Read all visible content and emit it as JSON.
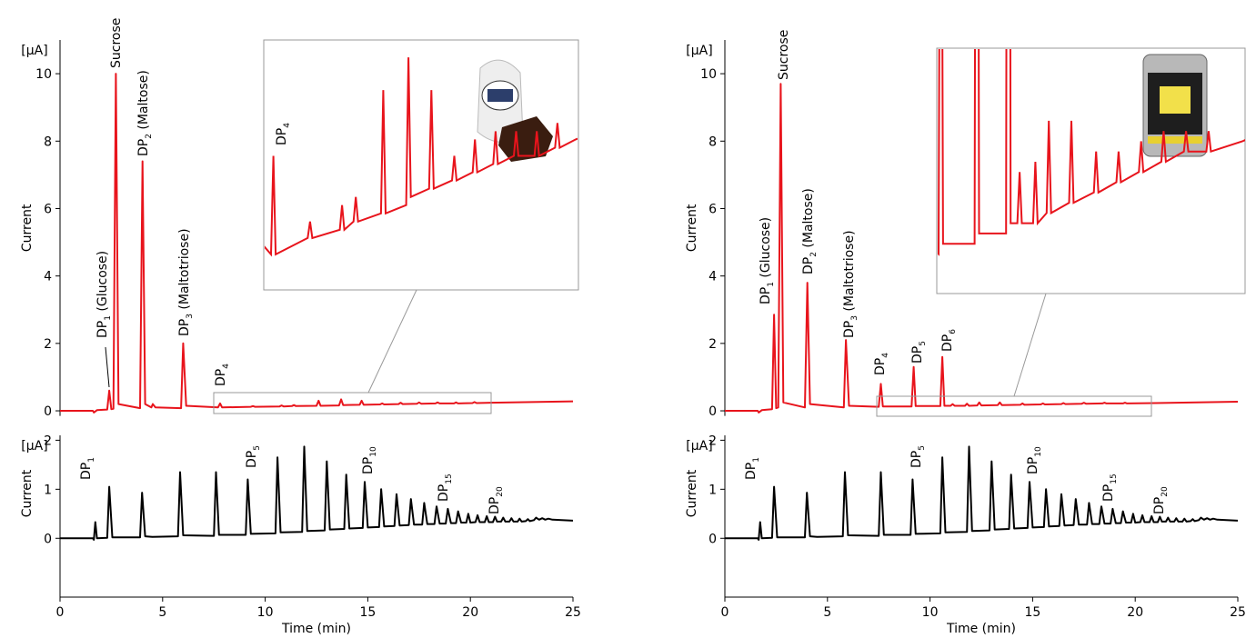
{
  "chart_data": [
    {
      "type": "line",
      "ylabel": "Current",
      "y_unit": "[μA]",
      "xlim": [
        0,
        25
      ],
      "ylim": [
        -0.15,
        11
      ],
      "yticks": [
        0,
        2,
        4,
        6,
        8,
        10
      ],
      "x": [
        0,
        1.6,
        1.65,
        1.8,
        2.3,
        2.4,
        2.5,
        2.6,
        2.72,
        2.85,
        3.9,
        4.02,
        4.15,
        4.45,
        4.52,
        4.65,
        5.9,
        6.0,
        6.15,
        7.7,
        7.8,
        7.9,
        9.3,
        9.4,
        9.5,
        10.7,
        10.8,
        10.9,
        11.3,
        11.4,
        11.5,
        12.5,
        12.6,
        12.7,
        13.6,
        13.7,
        13.8,
        14.6,
        14.7,
        14.8,
        15.6,
        15.7,
        15.8,
        16.5,
        16.6,
        16.7,
        17.4,
        17.5,
        17.6,
        18.3,
        18.4,
        18.5,
        19.2,
        19.3,
        19.4,
        20.1,
        20.2,
        20.3,
        21,
        23,
        25
      ],
      "series": [
        {
          "color": "#e8141c",
          "values": [
            0,
            0,
            -0.05,
            0.02,
            0.04,
            0.6,
            0.05,
            0.06,
            10.0,
            0.2,
            0.08,
            7.4,
            0.2,
            0.1,
            0.2,
            0.1,
            0.08,
            2.0,
            0.15,
            0.1,
            0.22,
            0.1,
            0.12,
            0.14,
            0.12,
            0.13,
            0.16,
            0.13,
            0.14,
            0.17,
            0.14,
            0.15,
            0.3,
            0.15,
            0.16,
            0.34,
            0.17,
            0.18,
            0.3,
            0.18,
            0.19,
            0.22,
            0.19,
            0.2,
            0.24,
            0.2,
            0.21,
            0.25,
            0.21,
            0.22,
            0.25,
            0.22,
            0.22,
            0.25,
            0.22,
            0.23,
            0.26,
            0.23,
            0.24,
            0.26,
            0.28
          ]
        }
      ],
      "inset": {
        "xlim": [
          7.5,
          21
        ],
        "ylim": [
          0.08,
          0.36
        ],
        "annotations": [
          {
            "text": "DP",
            "sub": "4"
          }
        ]
      },
      "annotations": [
        {
          "text": "Sucrose"
        },
        {
          "text": "DP",
          "sub": "1",
          "suffix": " (Glucose)"
        },
        {
          "text": "DP",
          "sub": "2",
          "suffix": " (Maltose)"
        },
        {
          "text": "DP",
          "sub": "3",
          "suffix": " (Maltotriose)"
        },
        {
          "text": "DP",
          "sub": "4"
        }
      ]
    },
    {
      "type": "line",
      "ylabel": "Current",
      "y_unit": "[μA]",
      "xlabel": "Time (min)",
      "xlim": [
        0,
        25
      ],
      "ylim": [
        -1.2,
        2.1
      ],
      "yticks": [
        0,
        1,
        2
      ],
      "xticks": [
        0,
        5,
        10,
        15,
        20,
        25
      ],
      "x": [
        0,
        1.6,
        1.65,
        1.72,
        1.8,
        2.3,
        2.4,
        2.55,
        3.9,
        4.0,
        4.15,
        4.5,
        5.75,
        5.85,
        6.0,
        7.5,
        7.6,
        7.75,
        9.05,
        9.15,
        9.3,
        10.5,
        10.6,
        10.75,
        11.8,
        11.9,
        12.05,
        12.9,
        13.0,
        13.15,
        13.85,
        13.95,
        14.1,
        14.75,
        14.85,
        15.0,
        15.55,
        15.65,
        15.8,
        16.3,
        16.4,
        16.55,
        17.0,
        17.1,
        17.25,
        17.65,
        17.75,
        17.9,
        18.25,
        18.35,
        18.5,
        18.8,
        18.9,
        19.05,
        19.3,
        19.4,
        19.55,
        19.8,
        19.9,
        20.0,
        20.25,
        20.35,
        20.45,
        20.7,
        20.8,
        20.9,
        21.1,
        21.2,
        21.3,
        21.5,
        21.6,
        21.7,
        21.9,
        22.0,
        22.1,
        22.3,
        22.4,
        22.5,
        22.7,
        22.8,
        22.9,
        23.1,
        23.2,
        23.35,
        23.5,
        23.65,
        23.8,
        24.0,
        25
      ],
      "series": [
        {
          "color": "#000000",
          "values": [
            0,
            0,
            -0.03,
            0.33,
            0.0,
            0.01,
            1.05,
            0.02,
            0.02,
            0.93,
            0.04,
            0.03,
            0.04,
            1.35,
            0.06,
            0.05,
            1.35,
            0.07,
            0.07,
            1.2,
            0.09,
            0.1,
            1.65,
            0.12,
            0.13,
            1.87,
            0.15,
            0.16,
            1.57,
            0.18,
            0.19,
            1.3,
            0.2,
            0.21,
            1.15,
            0.22,
            0.23,
            1.0,
            0.24,
            0.25,
            0.9,
            0.26,
            0.27,
            0.8,
            0.28,
            0.28,
            0.72,
            0.29,
            0.29,
            0.65,
            0.3,
            0.3,
            0.6,
            0.31,
            0.31,
            0.55,
            0.32,
            0.32,
            0.5,
            0.32,
            0.33,
            0.47,
            0.33,
            0.33,
            0.45,
            0.33,
            0.33,
            0.44,
            0.34,
            0.34,
            0.42,
            0.34,
            0.34,
            0.41,
            0.34,
            0.34,
            0.4,
            0.34,
            0.35,
            0.39,
            0.35,
            0.37,
            0.42,
            0.38,
            0.41,
            0.38,
            0.4,
            0.38,
            0.36
          ]
        }
      ],
      "annotations": [
        {
          "text": "DP",
          "sub": "1"
        },
        {
          "text": "DP",
          "sub": "5"
        },
        {
          "text": "DP",
          "sub": "10"
        },
        {
          "text": "DP",
          "sub": "15"
        },
        {
          "text": "DP",
          "sub": "20"
        }
      ]
    },
    {
      "type": "line",
      "ylabel": "Current",
      "y_unit": "[μA]",
      "xlim": [
        0,
        25
      ],
      "ylim": [
        -0.15,
        11
      ],
      "yticks": [
        0,
        2,
        4,
        6,
        8,
        10
      ],
      "x": [
        0,
        1.6,
        1.65,
        1.8,
        2.3,
        2.4,
        2.5,
        2.6,
        2.72,
        2.85,
        3.9,
        4.02,
        4.15,
        5.8,
        5.9,
        6.05,
        7.5,
        7.6,
        7.7,
        9.1,
        9.2,
        9.3,
        10.5,
        10.6,
        10.7,
        11.0,
        11.1,
        11.2,
        11.7,
        11.8,
        11.9,
        12.3,
        12.4,
        12.5,
        13.3,
        13.4,
        13.5,
        14.4,
        14.5,
        14.6,
        15.4,
        15.5,
        15.6,
        16.4,
        16.5,
        16.6,
        17.4,
        17.5,
        17.6,
        18.4,
        18.5,
        18.6,
        19.4,
        19.5,
        19.6,
        21,
        23,
        25
      ],
      "series": [
        {
          "color": "#e8141c",
          "values": [
            0,
            0,
            -0.05,
            0.02,
            0.05,
            2.85,
            0.08,
            0.1,
            9.7,
            0.25,
            0.1,
            3.8,
            0.2,
            0.1,
            2.1,
            0.15,
            0.12,
            0.8,
            0.13,
            0.13,
            1.3,
            0.14,
            0.14,
            1.6,
            0.15,
            0.15,
            0.2,
            0.15,
            0.15,
            0.21,
            0.15,
            0.16,
            0.25,
            0.16,
            0.17,
            0.25,
            0.17,
            0.18,
            0.22,
            0.18,
            0.19,
            0.22,
            0.19,
            0.2,
            0.23,
            0.2,
            0.21,
            0.24,
            0.21,
            0.22,
            0.24,
            0.22,
            0.22,
            0.24,
            0.22,
            0.23,
            0.25,
            0.27
          ]
        }
      ],
      "inset": {
        "xlim": [
          7.5,
          21
        ],
        "ylim": [
          0.1,
          0.32
        ]
      },
      "annotations": [
        {
          "text": "Sucrose"
        },
        {
          "text": "DP",
          "sub": "1",
          "suffix": " (Glucose)"
        },
        {
          "text": "DP",
          "sub": "2",
          "suffix": " (Maltose)"
        },
        {
          "text": "DP",
          "sub": "3",
          "suffix": " (Maltotriose)"
        },
        {
          "text": "DP",
          "sub": "4"
        },
        {
          "text": "DP",
          "sub": "5"
        },
        {
          "text": "DP",
          "sub": "6"
        }
      ]
    },
    {
      "type": "line",
      "ylabel": "Current",
      "y_unit": "[μA]",
      "xlabel": "Time (min)",
      "xlim": [
        0,
        25
      ],
      "ylim": [
        -1.2,
        2.1
      ],
      "yticks": [
        0,
        1,
        2
      ],
      "xticks": [
        0,
        5,
        10,
        15,
        20,
        25
      ],
      "x": [
        0,
        1.6,
        1.65,
        1.72,
        1.8,
        2.3,
        2.4,
        2.55,
        3.9,
        4.0,
        4.15,
        4.5,
        5.75,
        5.85,
        6.0,
        7.5,
        7.6,
        7.75,
        9.05,
        9.15,
        9.3,
        10.5,
        10.6,
        10.75,
        11.8,
        11.9,
        12.05,
        12.9,
        13.0,
        13.15,
        13.85,
        13.95,
        14.1,
        14.75,
        14.85,
        15.0,
        15.55,
        15.65,
        15.8,
        16.3,
        16.4,
        16.55,
        17.0,
        17.1,
        17.25,
        17.65,
        17.75,
        17.9,
        18.25,
        18.35,
        18.5,
        18.8,
        18.9,
        19.05,
        19.3,
        19.4,
        19.55,
        19.8,
        19.9,
        20.0,
        20.25,
        20.35,
        20.45,
        20.7,
        20.8,
        20.9,
        21.1,
        21.2,
        21.3,
        21.5,
        21.6,
        21.7,
        21.9,
        22.0,
        22.1,
        22.3,
        22.4,
        22.5,
        22.7,
        22.8,
        22.9,
        23.1,
        23.2,
        23.35,
        23.5,
        23.65,
        23.8,
        24.0,
        25
      ],
      "series": [
        {
          "color": "#000000",
          "values": [
            0,
            0,
            -0.03,
            0.33,
            0.0,
            0.01,
            1.05,
            0.02,
            0.02,
            0.93,
            0.04,
            0.03,
            0.04,
            1.35,
            0.06,
            0.05,
            1.35,
            0.07,
            0.07,
            1.2,
            0.09,
            0.1,
            1.65,
            0.12,
            0.13,
            1.87,
            0.15,
            0.16,
            1.57,
            0.18,
            0.19,
            1.3,
            0.2,
            0.21,
            1.15,
            0.22,
            0.23,
            1.0,
            0.24,
            0.25,
            0.9,
            0.26,
            0.27,
            0.8,
            0.28,
            0.28,
            0.72,
            0.29,
            0.29,
            0.65,
            0.3,
            0.3,
            0.6,
            0.31,
            0.31,
            0.55,
            0.32,
            0.32,
            0.5,
            0.32,
            0.33,
            0.47,
            0.33,
            0.33,
            0.45,
            0.33,
            0.33,
            0.44,
            0.34,
            0.34,
            0.42,
            0.34,
            0.34,
            0.41,
            0.34,
            0.34,
            0.4,
            0.34,
            0.35,
            0.39,
            0.35,
            0.37,
            0.42,
            0.38,
            0.41,
            0.38,
            0.4,
            0.38,
            0.36
          ]
        }
      ],
      "annotations": [
        {
          "text": "DP",
          "sub": "1"
        },
        {
          "text": "DP",
          "sub": "5"
        },
        {
          "text": "DP",
          "sub": "10"
        },
        {
          "text": "DP",
          "sub": "15"
        },
        {
          "text": "DP",
          "sub": "20"
        }
      ]
    }
  ]
}
